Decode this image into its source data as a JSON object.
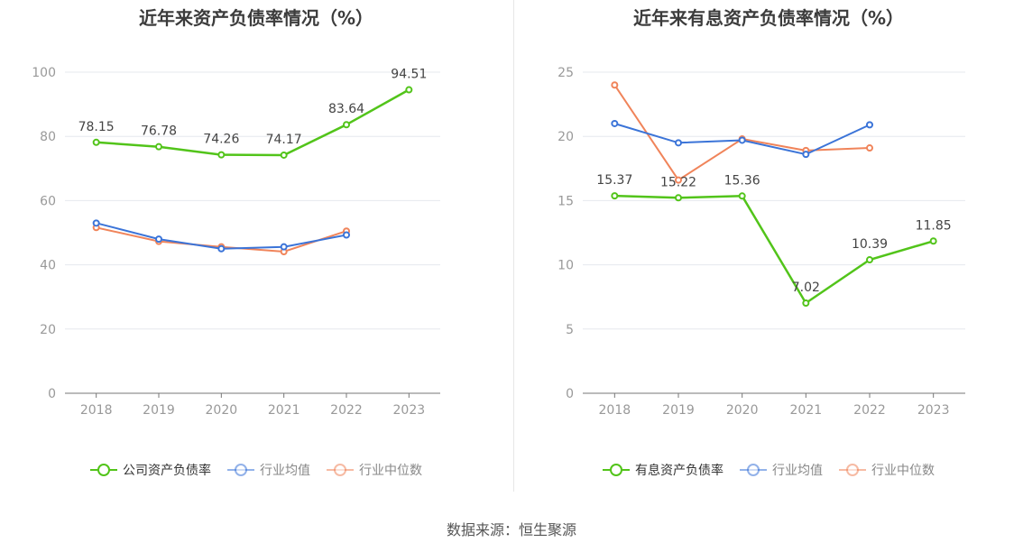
{
  "source": "数据来源：恒生聚源",
  "chart_data": [
    {
      "type": "line",
      "title": "近年来资产负债率情况（%）",
      "x": [
        "2018",
        "2019",
        "2020",
        "2021",
        "2022",
        "2023"
      ],
      "ylim": [
        0,
        100
      ],
      "yticks": [
        0,
        20,
        40,
        60,
        80,
        100
      ],
      "grid": true,
      "legend_position": "bottom",
      "series": [
        {
          "name": "公司资产负债率",
          "color": "#52c41a",
          "values": [
            78.15,
            76.78,
            74.26,
            74.17,
            83.64,
            94.51
          ],
          "labels": [
            "78.15",
            "76.78",
            "74.26",
            "74.17",
            "83.64",
            "94.51"
          ],
          "legend_faded": false
        },
        {
          "name": "行业均值",
          "color": "#3b74d8",
          "values": [
            53.0,
            48.0,
            45.0,
            45.6,
            49.3,
            null
          ],
          "labels": [],
          "legend_faded": true
        },
        {
          "name": "行业中位数",
          "color": "#f0845a",
          "values": [
            51.6,
            47.3,
            45.6,
            44.1,
            50.5,
            null
          ],
          "labels": [],
          "legend_faded": true
        }
      ]
    },
    {
      "type": "line",
      "title": "近年来有息资产负债率情况（%）",
      "x": [
        "2018",
        "2019",
        "2020",
        "2021",
        "2022",
        "2023"
      ],
      "ylim": [
        0,
        25
      ],
      "yticks": [
        0,
        5,
        10,
        15,
        20,
        25
      ],
      "grid": true,
      "legend_position": "bottom",
      "series": [
        {
          "name": "有息资产负债率",
          "color": "#52c41a",
          "values": [
            15.37,
            15.22,
            15.36,
            7.02,
            10.39,
            11.85
          ],
          "labels": [
            "15.37",
            "15.22",
            "15.36",
            "7.02",
            "10.39",
            "11.85"
          ],
          "legend_faded": false
        },
        {
          "name": "行业均值",
          "color": "#3b74d8",
          "values": [
            21.0,
            19.5,
            19.7,
            18.6,
            20.9,
            null
          ],
          "labels": [],
          "legend_faded": true
        },
        {
          "name": "行业中位数",
          "color": "#f0845a",
          "values": [
            24.0,
            16.6,
            19.8,
            18.9,
            19.1,
            null
          ],
          "labels": [],
          "legend_faded": true
        }
      ]
    }
  ]
}
